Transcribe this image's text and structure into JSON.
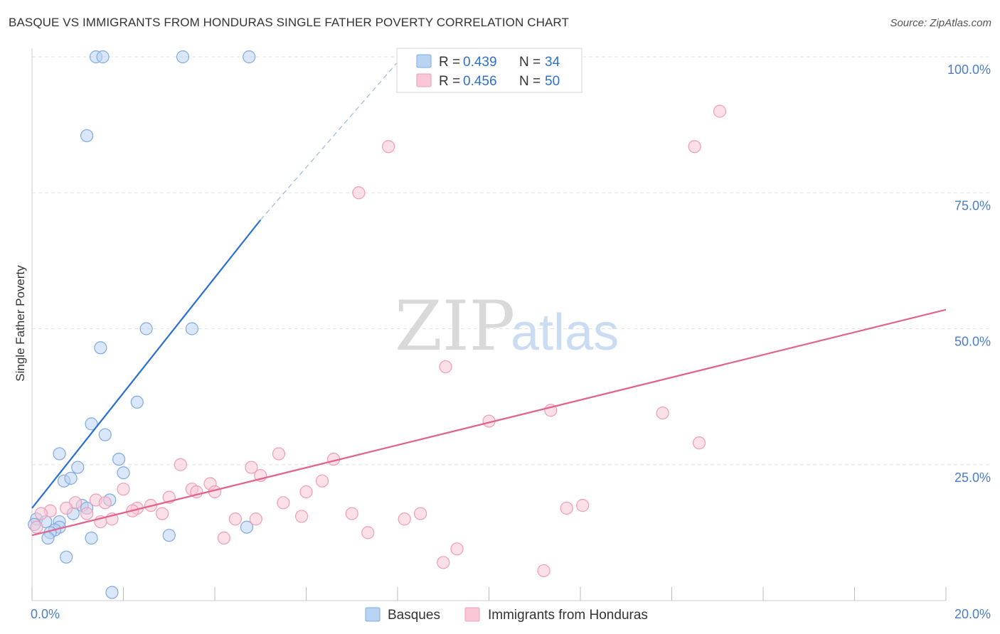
{
  "title": "BASQUE VS IMMIGRANTS FROM HONDURAS SINGLE FATHER POVERTY CORRELATION CHART",
  "source": "Source: ZipAtlas.com",
  "watermark": {
    "zip": "ZIP",
    "atlas": "atlas"
  },
  "colors": {
    "basques_fill": "#b9d3f3",
    "basques_stroke": "#7fa9e0",
    "basques_line": "#2a6fd1",
    "honduras_fill": "#f9c7d6",
    "honduras_stroke": "#ef9cb6",
    "honduras_line": "#e0648d",
    "tick": "#4a7cc9",
    "grid": "#e3e3e3"
  },
  "chart_data": {
    "type": "scatter",
    "title": "BASQUE VS IMMIGRANTS FROM HONDURAS SINGLE FATHER POVERTY CORRELATION CHART",
    "xlabel": "",
    "ylabel": "Single Father Poverty",
    "xlim": [
      0,
      20
    ],
    "ylim": [
      0,
      100
    ],
    "x_tick_labels": [
      "0.0%",
      "20.0%"
    ],
    "y_tick_labels": [
      "25.0%",
      "50.0%",
      "75.0%",
      "100.0%"
    ],
    "y_ticks": [
      25,
      50,
      75,
      100
    ],
    "legend": [
      {
        "swatch": "basques",
        "r_label": "R =",
        "r_value": "0.439",
        "n_label": "N =",
        "n_value": "34"
      },
      {
        "swatch": "honduras",
        "r_label": "R =",
        "r_value": "0.456",
        "n_label": "N =",
        "n_value": "50"
      }
    ],
    "bottom_legend": [
      "Basques",
      "Immigrants from Honduras"
    ],
    "series": [
      {
        "name": "Basques",
        "trend": {
          "x0": 0,
          "y0": 17,
          "x1": 5.0,
          "y1": 70,
          "dash_x1": 8.1,
          "dash_y1": 100
        },
        "points": [
          [
            1.4,
            100
          ],
          [
            1.55,
            100
          ],
          [
            3.3,
            100
          ],
          [
            4.75,
            100
          ],
          [
            1.2,
            85.5
          ],
          [
            2.5,
            50
          ],
          [
            3.5,
            50
          ],
          [
            1.5,
            46.5
          ],
          [
            2.3,
            36.5
          ],
          [
            1.3,
            32.5
          ],
          [
            1.6,
            30.5
          ],
          [
            0.6,
            27
          ],
          [
            1.9,
            26
          ],
          [
            1.0,
            24.5
          ],
          [
            2.0,
            23.5
          ],
          [
            0.7,
            22
          ],
          [
            0.85,
            22.5
          ],
          [
            1.7,
            18.5
          ],
          [
            1.1,
            17.5
          ],
          [
            1.2,
            17
          ],
          [
            0.9,
            16
          ],
          [
            0.1,
            15
          ],
          [
            0.3,
            14.5
          ],
          [
            0.6,
            14.5
          ],
          [
            0.05,
            14
          ],
          [
            0.6,
            13.5
          ],
          [
            0.5,
            13
          ],
          [
            0.4,
            12.5
          ],
          [
            3.0,
            12
          ],
          [
            4.7,
            13.5
          ],
          [
            0.35,
            11.5
          ],
          [
            1.3,
            11.5
          ],
          [
            0.75,
            8
          ],
          [
            1.75,
            1.5
          ]
        ]
      },
      {
        "name": "Immigrants from Honduras",
        "trend": {
          "x0": 0,
          "y0": 12,
          "x1": 20,
          "y1": 53.5
        },
        "points": [
          [
            15.05,
            90
          ],
          [
            7.8,
            83.5
          ],
          [
            14.5,
            83.5
          ],
          [
            7.15,
            75
          ],
          [
            9.05,
            43
          ],
          [
            11.35,
            35
          ],
          [
            13.8,
            34.5
          ],
          [
            10.0,
            33
          ],
          [
            14.6,
            29
          ],
          [
            5.4,
            27
          ],
          [
            6.6,
            26
          ],
          [
            3.25,
            25
          ],
          [
            4.8,
            24.5
          ],
          [
            5.0,
            23
          ],
          [
            6.35,
            22
          ],
          [
            2.0,
            20.5
          ],
          [
            3.5,
            20.5
          ],
          [
            3.9,
            21.5
          ],
          [
            3.6,
            20
          ],
          [
            4.0,
            20
          ],
          [
            6.0,
            20
          ],
          [
            3.0,
            19
          ],
          [
            1.4,
            18.5
          ],
          [
            0.95,
            18
          ],
          [
            1.6,
            18
          ],
          [
            0.75,
            17
          ],
          [
            2.6,
            17.5
          ],
          [
            2.3,
            17
          ],
          [
            5.5,
            18
          ],
          [
            11.7,
            17
          ],
          [
            12.05,
            17.5
          ],
          [
            7.0,
            16
          ],
          [
            0.4,
            16.5
          ],
          [
            2.2,
            16.5
          ],
          [
            1.2,
            16
          ],
          [
            2.85,
            16
          ],
          [
            5.9,
            15.5
          ],
          [
            8.5,
            16
          ],
          [
            0.2,
            16
          ],
          [
            1.75,
            15
          ],
          [
            4.45,
            15
          ],
          [
            4.9,
            15
          ],
          [
            8.15,
            15
          ],
          [
            1.5,
            14.5
          ],
          [
            0.1,
            13.5
          ],
          [
            7.35,
            12.5
          ],
          [
            4.2,
            11.5
          ],
          [
            9.3,
            9.5
          ],
          [
            9.0,
            7
          ],
          [
            11.2,
            5.5
          ]
        ]
      }
    ]
  }
}
